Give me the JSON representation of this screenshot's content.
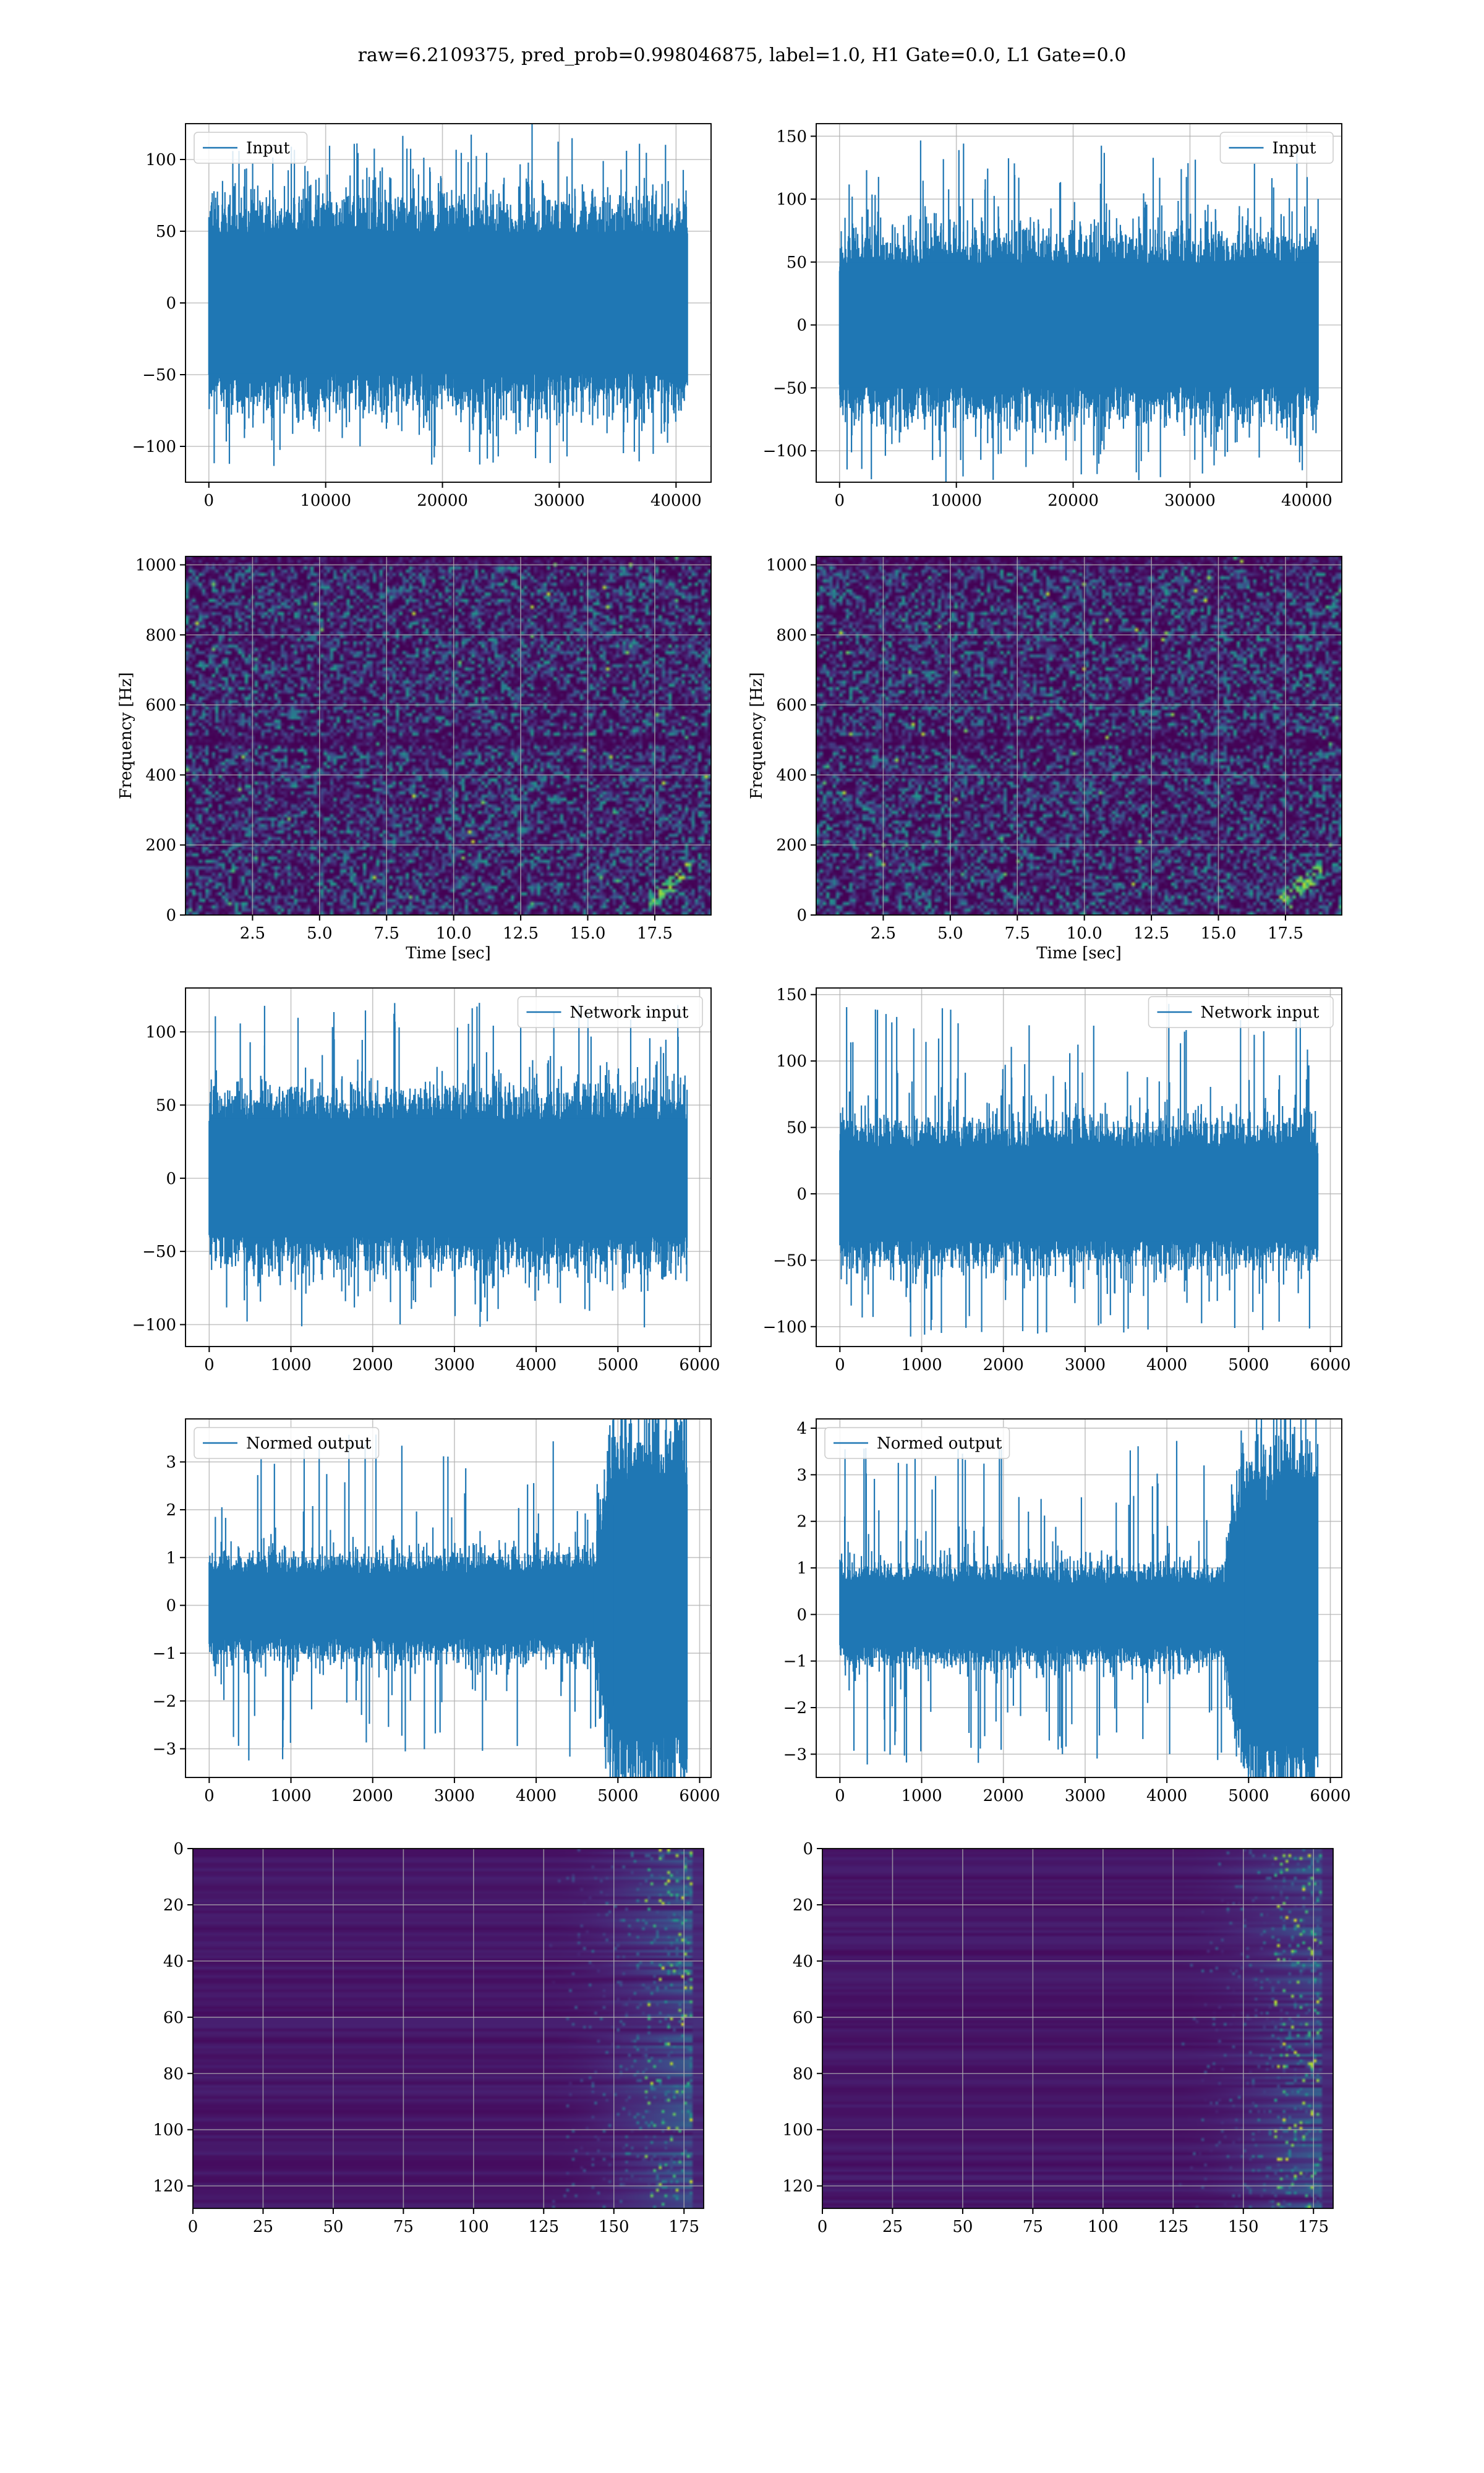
{
  "suptitle": "raw=6.2109375, pred_prob=0.998046875, label=1.0, H1 Gate=0.0, L1 Gate=0.0",
  "colors": {
    "line": "#1f77b4",
    "grid": "#b0b0b0",
    "viridis_dark": "#440154",
    "viridis_green": "#21918c",
    "viridis_yellow": "#fde725"
  },
  "chart_data": [
    {
      "id": "h1-input",
      "type": "line",
      "legend": "Input",
      "legend_loc": "upper left",
      "grid": true,
      "xlim": [
        -2000,
        43000
      ],
      "ylim": [
        -125,
        125
      ],
      "xticks": [
        0,
        10000,
        20000,
        30000,
        40000
      ],
      "xtick_labels": [
        "0",
        "10000",
        "20000",
        "30000",
        "40000"
      ],
      "yticks": [
        -100,
        -50,
        0,
        50,
        100
      ],
      "ytick_labels": [
        "−100",
        "−50",
        "0",
        "50",
        "100"
      ],
      "noise": {
        "n": 41000,
        "core": 55,
        "peak_max": 118,
        "peak_min": -115
      },
      "xlabel": "",
      "ylabel": ""
    },
    {
      "id": "l1-input",
      "type": "line",
      "legend": "Input",
      "legend_loc": "upper right",
      "grid": true,
      "xlim": [
        -2000,
        43000
      ],
      "ylim": [
        -125,
        160
      ],
      "xticks": [
        0,
        10000,
        20000,
        30000,
        40000
      ],
      "xtick_labels": [
        "0",
        "10000",
        "20000",
        "30000",
        "40000"
      ],
      "yticks": [
        -100,
        -50,
        0,
        50,
        100,
        150
      ],
      "ytick_labels": [
        "−100",
        "−50",
        "0",
        "50",
        "100",
        "150"
      ],
      "noise": {
        "n": 41000,
        "core": 55,
        "peak_max": 148,
        "peak_min": -125
      },
      "xlabel": "",
      "ylabel": ""
    },
    {
      "id": "h1-spectrogram",
      "type": "heatmap",
      "grid": true,
      "colormap": "viridis",
      "xlim": [
        0,
        19.6
      ],
      "ylim": [
        0,
        1024
      ],
      "xticks": [
        2.5,
        5.0,
        7.5,
        10.0,
        12.5,
        15.0,
        17.5
      ],
      "xtick_labels": [
        "2.5",
        "5.0",
        "7.5",
        "10.0",
        "12.5",
        "15.0",
        "17.5"
      ],
      "yticks": [
        0,
        200,
        400,
        600,
        800,
        1000
      ],
      "ytick_labels": [
        "0",
        "200",
        "400",
        "600",
        "800",
        "1000"
      ],
      "xlabel": "Time [sec]",
      "ylabel": "Frequency [Hz]"
    },
    {
      "id": "l1-spectrogram",
      "type": "heatmap",
      "grid": true,
      "colormap": "viridis",
      "xlim": [
        0,
        19.6
      ],
      "ylim": [
        0,
        1024
      ],
      "xticks": [
        2.5,
        5.0,
        7.5,
        10.0,
        12.5,
        15.0,
        17.5
      ],
      "xtick_labels": [
        "2.5",
        "5.0",
        "7.5",
        "10.0",
        "12.5",
        "15.0",
        "17.5"
      ],
      "yticks": [
        0,
        200,
        400,
        600,
        800,
        1000
      ],
      "ytick_labels": [
        "0",
        "200",
        "400",
        "600",
        "800",
        "1000"
      ],
      "xlabel": "Time [sec]",
      "ylabel": "Frequency [Hz]"
    },
    {
      "id": "h1-network-input",
      "type": "line",
      "legend": "Network input",
      "legend_loc": "upper right",
      "grid": true,
      "xlim": [
        -290,
        6140
      ],
      "ylim": [
        -115,
        130
      ],
      "xticks": [
        0,
        1000,
        2000,
        3000,
        4000,
        5000,
        6000
      ],
      "xtick_labels": [
        "0",
        "1000",
        "2000",
        "3000",
        "4000",
        "5000",
        "6000"
      ],
      "yticks": [
        -100,
        -50,
        0,
        50,
        100
      ],
      "ytick_labels": [
        "−100",
        "−50",
        "0",
        "50",
        "100"
      ],
      "noise": {
        "n": 5850,
        "core": 45,
        "peak_max": 120,
        "peak_min": -102
      },
      "xlabel": "",
      "ylabel": ""
    },
    {
      "id": "l1-network-input",
      "type": "line",
      "legend": "Network input",
      "legend_loc": "upper right",
      "grid": true,
      "xlim": [
        -290,
        6140
      ],
      "ylim": [
        -115,
        155
      ],
      "xticks": [
        0,
        1000,
        2000,
        3000,
        4000,
        5000,
        6000
      ],
      "xtick_labels": [
        "0",
        "1000",
        "2000",
        "3000",
        "4000",
        "5000",
        "6000"
      ],
      "yticks": [
        -100,
        -50,
        0,
        50,
        100,
        150
      ],
      "ytick_labels": [
        "−100",
        "−50",
        "0",
        "50",
        "100",
        "150"
      ],
      "noise": {
        "n": 5850,
        "core": 40,
        "peak_max": 143,
        "peak_min": -108
      },
      "xlabel": "",
      "ylabel": ""
    },
    {
      "id": "h1-normed-output",
      "type": "line",
      "legend": "Normed output",
      "legend_loc": "upper left",
      "grid": true,
      "xlim": [
        -290,
        6140
      ],
      "ylim": [
        -3.6,
        3.9
      ],
      "xticks": [
        0,
        1000,
        2000,
        3000,
        4000,
        5000,
        6000
      ],
      "xtick_labels": [
        "0",
        "1000",
        "2000",
        "3000",
        "4000",
        "5000",
        "6000"
      ],
      "yticks": [
        -3,
        -2,
        -1,
        0,
        1,
        2,
        3
      ],
      "ytick_labels": [
        "−3",
        "−2",
        "−1",
        "0",
        "1",
        "2",
        "3"
      ],
      "noise": {
        "n": 5850,
        "core": 0.8,
        "peak_max": 3.6,
        "peak_min": -3.3,
        "burst_start": 4700,
        "burst_amp": 2.2
      },
      "xlabel": "",
      "ylabel": ""
    },
    {
      "id": "l1-normed-output",
      "type": "line",
      "legend": "Normed output",
      "legend_loc": "upper left",
      "grid": true,
      "xlim": [
        -290,
        6140
      ],
      "ylim": [
        -3.5,
        4.2
      ],
      "xticks": [
        0,
        1000,
        2000,
        3000,
        4000,
        5000,
        6000
      ],
      "xtick_labels": [
        "0",
        "1000",
        "2000",
        "3000",
        "4000",
        "5000",
        "6000"
      ],
      "yticks": [
        -3,
        -2,
        -1,
        0,
        1,
        2,
        3,
        4
      ],
      "ytick_labels": [
        "−3",
        "−2",
        "−1",
        "0",
        "1",
        "2",
        "3",
        "4"
      ],
      "noise": {
        "n": 5850,
        "core": 0.8,
        "peak_max": 3.8,
        "peak_min": -3.3,
        "burst_start": 4700,
        "burst_amp": 2.1
      },
      "xlabel": "",
      "ylabel": ""
    },
    {
      "id": "h1-feature-map",
      "type": "heatmap",
      "grid": true,
      "colormap": "viridis",
      "xlim": [
        0,
        182
      ],
      "ylim": [
        128,
        0
      ],
      "xticks": [
        0,
        25,
        50,
        75,
        100,
        125,
        150,
        175
      ],
      "xtick_labels": [
        "0",
        "25",
        "50",
        "75",
        "100",
        "125",
        "150",
        "175"
      ],
      "yticks": [
        0,
        20,
        40,
        60,
        80,
        100,
        120
      ],
      "ytick_labels": [
        "0",
        "20",
        "40",
        "60",
        "80",
        "100",
        "120"
      ],
      "activity_onset": 125,
      "xlabel": "",
      "ylabel": ""
    },
    {
      "id": "l1-feature-map",
      "type": "heatmap",
      "grid": true,
      "colormap": "viridis",
      "xlim": [
        0,
        182
      ],
      "ylim": [
        128,
        0
      ],
      "xticks": [
        0,
        25,
        50,
        75,
        100,
        125,
        150,
        175
      ],
      "xtick_labels": [
        "0",
        "25",
        "50",
        "75",
        "100",
        "125",
        "150",
        "175"
      ],
      "yticks": [
        0,
        20,
        40,
        60,
        80,
        100,
        120
      ],
      "ytick_labels": [
        "0",
        "20",
        "40",
        "60",
        "80",
        "100",
        "120"
      ],
      "activity_onset": 125,
      "xlabel": "",
      "ylabel": ""
    }
  ]
}
